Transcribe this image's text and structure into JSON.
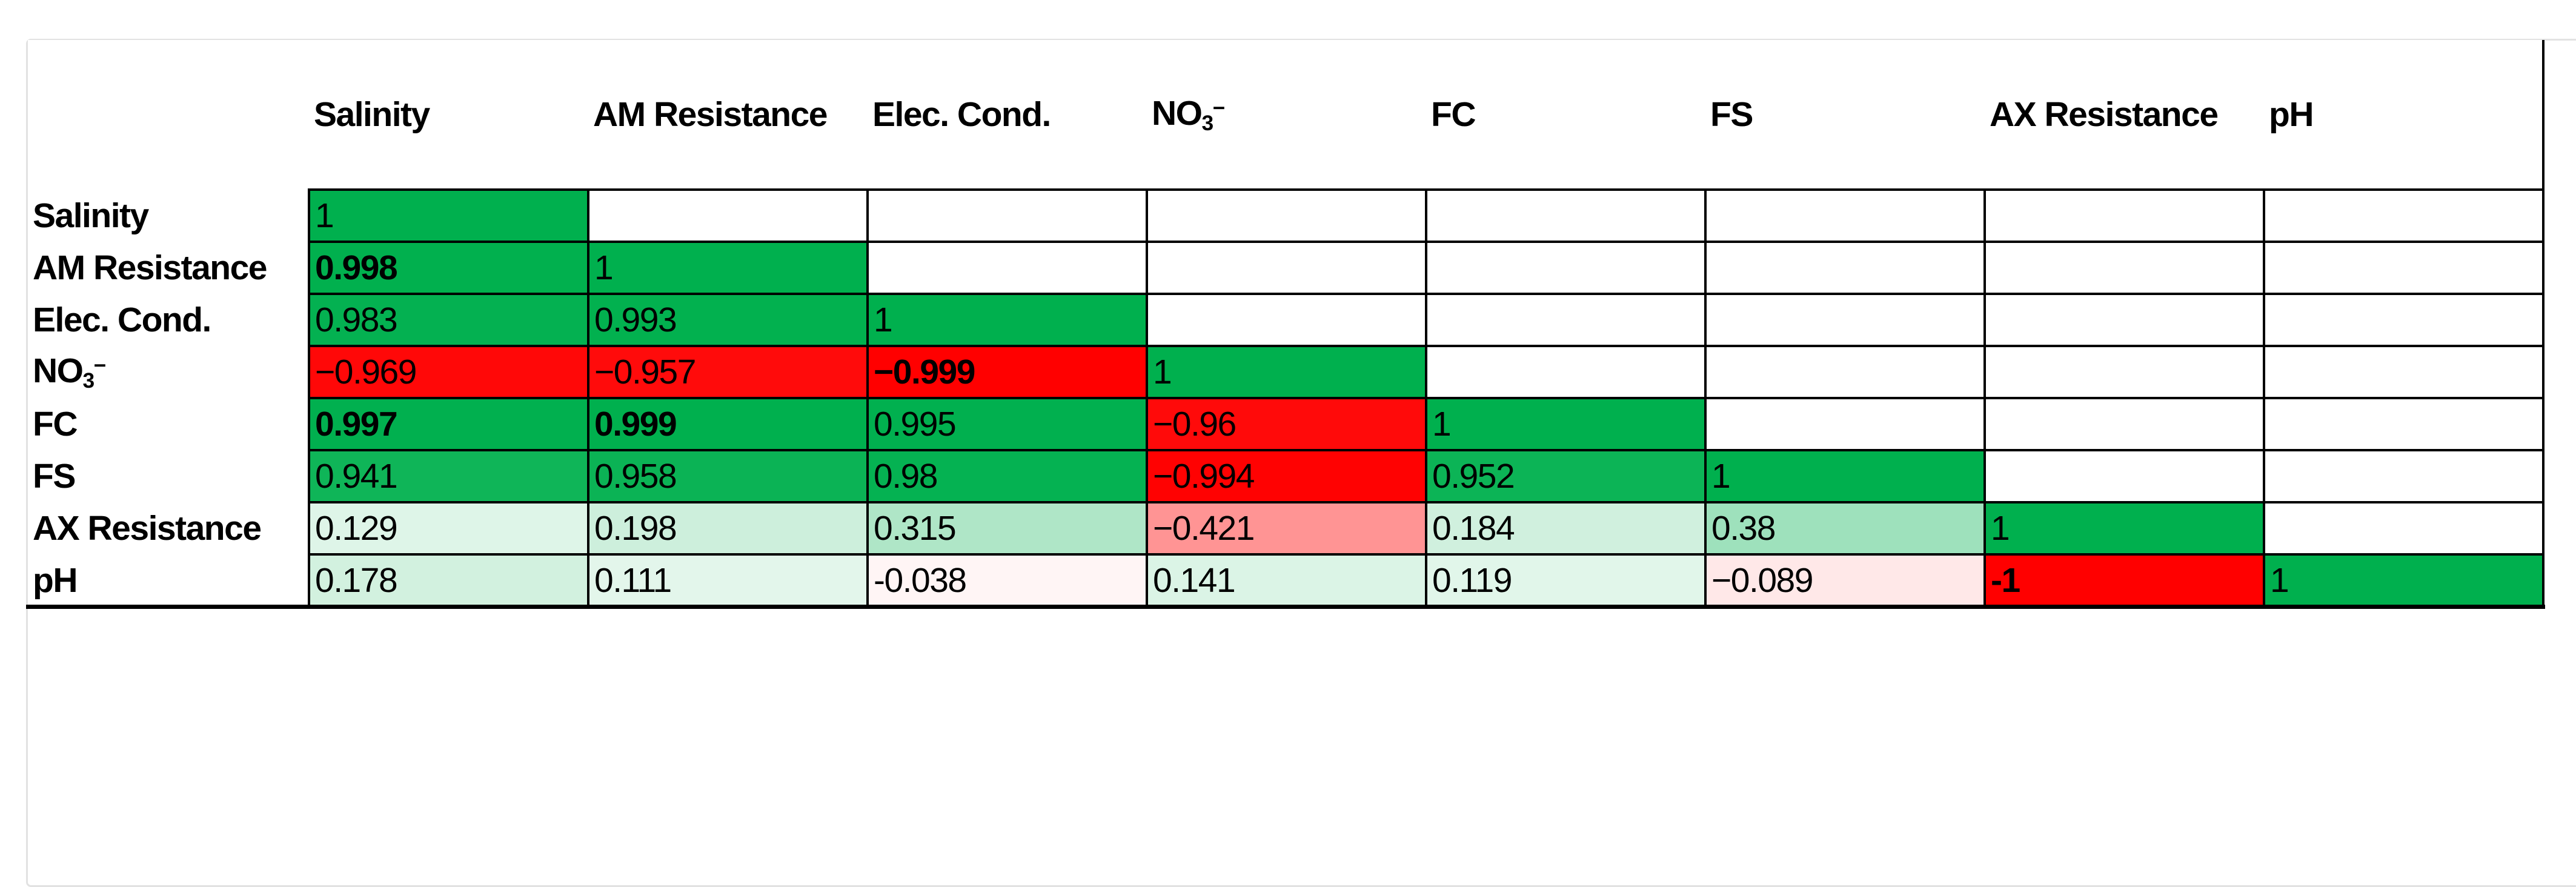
{
  "table": {
    "column_headers": [
      "Salinity",
      "AM Resistance",
      "Elec. Cond.",
      "NO₃⁻",
      "FC",
      "FS",
      "AX Resistance",
      "pH"
    ],
    "row_headers": [
      "Salinity",
      "AM Resistance",
      "Elec. Cond.",
      "NO₃⁻",
      "FC",
      "FS",
      "AX Resistance",
      "pH"
    ],
    "cells": [
      [
        {
          "text": "1",
          "value": 1,
          "bold": false
        },
        null,
        null,
        null,
        null,
        null,
        null,
        null
      ],
      [
        {
          "text": "0.998",
          "value": 0.998,
          "bold": true
        },
        {
          "text": "1",
          "value": 1,
          "bold": false
        },
        null,
        null,
        null,
        null,
        null,
        null
      ],
      [
        {
          "text": "0.983",
          "value": 0.983,
          "bold": false
        },
        {
          "text": "0.993",
          "value": 0.993,
          "bold": false
        },
        {
          "text": "1",
          "value": 1,
          "bold": false
        },
        null,
        null,
        null,
        null,
        null
      ],
      [
        {
          "text": "−0.969",
          "value": -0.969,
          "bold": false
        },
        {
          "text": "−0.957",
          "value": -0.957,
          "bold": false
        },
        {
          "text": "−0.999",
          "value": -0.999,
          "bold": true
        },
        {
          "text": "1",
          "value": 1,
          "bold": false
        },
        null,
        null,
        null,
        null
      ],
      [
        {
          "text": "0.997",
          "value": 0.997,
          "bold": true
        },
        {
          "text": "0.999",
          "value": 0.999,
          "bold": true
        },
        {
          "text": "0.995",
          "value": 0.995,
          "bold": false
        },
        {
          "text": "−0.96",
          "value": -0.96,
          "bold": false
        },
        {
          "text": "1",
          "value": 1,
          "bold": false
        },
        null,
        null,
        null
      ],
      [
        {
          "text": "0.941",
          "value": 0.941,
          "bold": false
        },
        {
          "text": "0.958",
          "value": 0.958,
          "bold": false
        },
        {
          "text": "0.98",
          "value": 0.98,
          "bold": false
        },
        {
          "text": "−0.994",
          "value": -0.994,
          "bold": false
        },
        {
          "text": "0.952",
          "value": 0.952,
          "bold": false
        },
        {
          "text": "1",
          "value": 1,
          "bold": false
        },
        null,
        null
      ],
      [
        {
          "text": "0.129",
          "value": 0.129,
          "bold": false
        },
        {
          "text": "0.198",
          "value": 0.198,
          "bold": false
        },
        {
          "text": "0.315",
          "value": 0.315,
          "bold": false
        },
        {
          "text": "−0.421",
          "value": -0.421,
          "bold": false
        },
        {
          "text": "0.184",
          "value": 0.184,
          "bold": false
        },
        {
          "text": "0.38",
          "value": 0.38,
          "bold": false
        },
        {
          "text": "1",
          "value": 1,
          "bold": false
        },
        null
      ],
      [
        {
          "text": "0.178",
          "value": 0.178,
          "bold": false
        },
        {
          "text": "0.111",
          "value": 0.111,
          "bold": false
        },
        {
          "text": "-0.038",
          "value": -0.038,
          "bold": false
        },
        {
          "text": "0.141",
          "value": 0.141,
          "bold": false
        },
        {
          "text": "0.119",
          "value": 0.119,
          "bold": false
        },
        {
          "text": "−0.089",
          "value": -0.089,
          "bold": false
        },
        {
          "text": "-1",
          "value": -1,
          "bold": true
        },
        {
          "text": "1",
          "value": 1,
          "bold": false
        }
      ]
    ]
  },
  "colors": {
    "scale_negative": "#FF0000",
    "scale_mid": "#FFFFFF",
    "scale_positive": "#00B04E",
    "cell_border": "#000000",
    "frame_border": "#E2E2E2"
  },
  "chart_data": {
    "type": "heatmap",
    "title": "",
    "variables": [
      "Salinity",
      "AM Resistance",
      "Elec. Cond.",
      "NO₃⁻",
      "FC",
      "FS",
      "AX Resistance",
      "pH"
    ],
    "matrix": [
      [
        1,
        null,
        null,
        null,
        null,
        null,
        null,
        null
      ],
      [
        0.998,
        1,
        null,
        null,
        null,
        null,
        null,
        null
      ],
      [
        0.983,
        0.993,
        1,
        null,
        null,
        null,
        null,
        null
      ],
      [
        -0.969,
        -0.957,
        -0.999,
        1,
        null,
        null,
        null,
        null
      ],
      [
        0.997,
        0.999,
        0.995,
        -0.96,
        1,
        null,
        null,
        null
      ],
      [
        0.941,
        0.958,
        0.98,
        -0.994,
        0.952,
        1,
        null,
        null
      ],
      [
        0.129,
        0.198,
        0.315,
        -0.421,
        0.184,
        0.38,
        1,
        null
      ],
      [
        0.178,
        0.111,
        -0.038,
        0.141,
        0.119,
        -0.089,
        -1,
        1
      ]
    ],
    "color_scale": {
      "domain": [
        -1,
        0,
        1
      ],
      "colors": [
        "#FF0000",
        "#FFFFFF",
        "#00B04E"
      ]
    },
    "legend": "none",
    "grid": "black cell borders, lower triangle filled"
  }
}
